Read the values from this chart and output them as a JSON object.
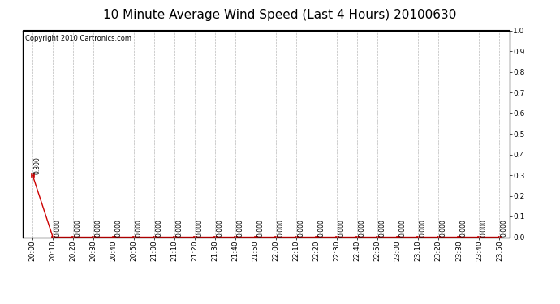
{
  "title": "10 Minute Average Wind Speed (Last 4 Hours) 20100630",
  "copyright_text": "Copyright 2010 Cartronics.com",
  "x_labels": [
    "20:00",
    "20:10",
    "20:20",
    "20:30",
    "20:40",
    "20:50",
    "21:00",
    "21:10",
    "21:20",
    "21:30",
    "21:40",
    "21:50",
    "22:00",
    "22:10",
    "22:20",
    "22:30",
    "22:40",
    "22:50",
    "23:00",
    "23:10",
    "23:20",
    "23:30",
    "23:40",
    "23:50"
  ],
  "y_values": [
    0.3,
    0.0,
    0.0,
    0.0,
    0.0,
    0.0,
    0.0,
    0.0,
    0.0,
    0.0,
    0.0,
    0.0,
    0.0,
    0.0,
    0.0,
    0.0,
    0.0,
    0.0,
    0.0,
    0.0,
    0.0,
    0.0,
    0.0,
    0.0
  ],
  "line_color": "#cc0000",
  "marker_color": "#cc0000",
  "ylim": [
    0.0,
    1.0
  ],
  "yticks_right": [
    0.0,
    0.1,
    0.2,
    0.3,
    0.4,
    0.5,
    0.6,
    0.7,
    0.8,
    0.9,
    1.0
  ],
  "background_color": "#ffffff",
  "plot_bg_color": "#ffffff",
  "grid_color": "#aaaaaa",
  "title_fontsize": 11,
  "copyright_fontsize": 6,
  "tick_label_fontsize": 6.5,
  "data_label_fontsize": 5.5
}
